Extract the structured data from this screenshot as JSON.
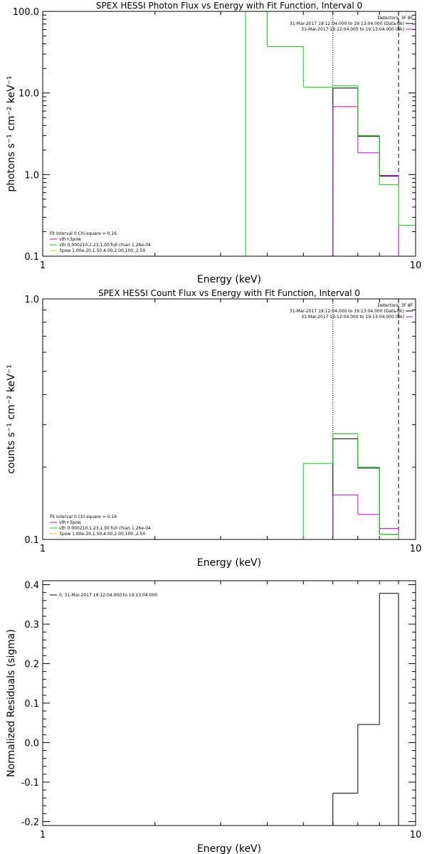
{
  "chart_data": [
    {
      "type": "line",
      "title": "SPEX HESSI Photon Flux vs Energy with Fit Function, Interval 0",
      "xlabel": "Energy (keV)",
      "ylabel": "photons s⁻¹ cm⁻² keV⁻¹",
      "xscale": "log",
      "yscale": "log",
      "xlim": [
        1,
        10
      ],
      "ylim": [
        0.1,
        100
      ],
      "x_ticks": [
        {
          "v": 1,
          "label": "1"
        },
        {
          "v": 10,
          "label": "10"
        }
      ],
      "y_ticks": [
        {
          "v": 0.1,
          "label": "0.1"
        },
        {
          "v": 1,
          "label": "1.0"
        },
        {
          "v": 10,
          "label": "10.0"
        },
        {
          "v": 100,
          "label": "100.0"
        }
      ],
      "edges": [
        3.0,
        3.5,
        4.0,
        5.0,
        6.0,
        7.0,
        8.0,
        9.0,
        10.0
      ],
      "series": [
        {
          "name": "Data-Bk",
          "color": "#000000",
          "values": [
            null,
            null,
            null,
            null,
            11.5,
            2.95,
            0.96,
            null
          ]
        },
        {
          "name": "vth+3pow",
          "color": "#d000d0",
          "values": [
            null,
            null,
            null,
            null,
            6.8,
            1.85,
            0.98,
            null
          ]
        },
        {
          "name": "vth 0.000210,1.23,1.00  full chian 1.26e-04",
          "color": "#00dd00",
          "values": [
            null,
            100,
            37,
            11.8,
            12.3,
            3.0,
            0.75,
            0.24
          ]
        }
      ],
      "vlines": [
        {
          "x": 6.0,
          "style": "dotted"
        },
        {
          "x": 9.0,
          "style": "dashed"
        }
      ],
      "legend_right": {
        "title": "Detectors: 3F 8F",
        "rows": [
          {
            "text": "31-Mar-2017 19:12:04.000 to 19:13:04.000 (Data-Bk)",
            "color": "#000000"
          },
          {
            "text": "31-Mar-2017 19:12:04.000 to 19:13:04.000 (Bk)",
            "color": "#d000d0"
          }
        ]
      },
      "legend_left": {
        "title": "Fit Interval 0   Chi-square = 0.16",
        "rows": [
          {
            "text": "vth+3pow",
            "color": "#d000d0"
          },
          {
            "text": "vth 0.000210,1.23,1.00  full chian 1.26e-04",
            "color": "#00dd00"
          },
          {
            "text": "3pow 1.00e-20,1.50,4.00,2.00,100.,2.50",
            "color": "#e8c000"
          }
        ]
      }
    },
    {
      "type": "line",
      "title": "SPEX HESSI Count Flux vs Energy with Fit Function, Interval 0",
      "xlabel": "Energy (keV)",
      "ylabel": "counts s⁻¹ cm⁻² keV⁻¹",
      "xscale": "log",
      "yscale": "log",
      "xlim": [
        1,
        10
      ],
      "ylim": [
        0.1,
        1.0
      ],
      "x_ticks": [
        {
          "v": 1,
          "label": "1"
        },
        {
          "v": 10,
          "label": "10"
        }
      ],
      "y_ticks": [
        {
          "v": 0.1,
          "label": "0.1"
        },
        {
          "v": 1,
          "label": "1.0"
        }
      ],
      "edges": [
        5.0,
        6.0,
        7.0,
        8.0,
        9.0
      ],
      "series": [
        {
          "name": "Data-Bk",
          "color": "#000000",
          "values": [
            null,
            0.262,
            0.198,
            0.105
          ]
        },
        {
          "name": "vth+3pow",
          "color": "#d000d0",
          "values": [
            null,
            0.153,
            0.127,
            0.111
          ]
        },
        {
          "name": "vth 0.000210,1.23,1.00  full chian 1.26e-04",
          "color": "#00dd00",
          "values": [
            0.207,
            0.275,
            0.2,
            0.105
          ]
        }
      ],
      "vlines": [
        {
          "x": 6.0,
          "style": "dotted"
        },
        {
          "x": 9.0,
          "style": "dashed"
        }
      ],
      "legend_right": {
        "title": "Detectors: 3F 8F",
        "rows": [
          {
            "text": "31-Mar-2017 19:12:04.000 to 19:13:04.000 (Data-Bk)",
            "color": "#000000"
          },
          {
            "text": "31-Mar-2017 19:12:04.000 to 19:13:04.000 (Bk)",
            "color": "#d000d0"
          }
        ]
      },
      "legend_left": {
        "title": "Fit Interval 0   Chi-square = 0.16",
        "rows": [
          {
            "text": "vth+3pow",
            "color": "#d000d0"
          },
          {
            "text": "vth 0.000210,1.23,1.00  full chian 1.26e-04",
            "color": "#00dd00"
          },
          {
            "text": "3pow 1.00e-20,1.50,4.00,2.00,100.,2.50",
            "color": "#e8c000"
          }
        ]
      }
    },
    {
      "type": "line",
      "title": "",
      "xlabel": "Energy (keV)",
      "ylabel": "Normalized Residuals (sigma)",
      "xscale": "log",
      "yscale": "linear",
      "xlim": [
        1,
        10
      ],
      "ylim": [
        -0.21,
        0.41
      ],
      "x_ticks": [
        {
          "v": 1,
          "label": "1"
        },
        {
          "v": 10,
          "label": "10"
        }
      ],
      "y_ticks": [
        {
          "v": -0.2,
          "label": "-0.2"
        },
        {
          "v": -0.1,
          "label": "-0.1"
        },
        {
          "v": 0.0,
          "label": "0.0"
        },
        {
          "v": 0.1,
          "label": "0.1"
        },
        {
          "v": 0.2,
          "label": "0.2"
        },
        {
          "v": 0.3,
          "label": "0.3"
        },
        {
          "v": 0.4,
          "label": "0.4"
        }
      ],
      "edges": [
        6.0,
        7.0,
        8.0,
        9.0
      ],
      "series": [
        {
          "name": "0. 31-Mar-2017 19:12:04.000 to 19:13:04.000",
          "color": "#000000",
          "values": [
            -0.128,
            0.046,
            0.378
          ]
        }
      ],
      "vlines": [],
      "legend_right": null,
      "legend_left": {
        "title": "",
        "rows": [
          {
            "text": "0. 31-Mar-2017 19:12:04.000 to 19:13:04.000",
            "color": "#000000"
          }
        ]
      }
    }
  ]
}
